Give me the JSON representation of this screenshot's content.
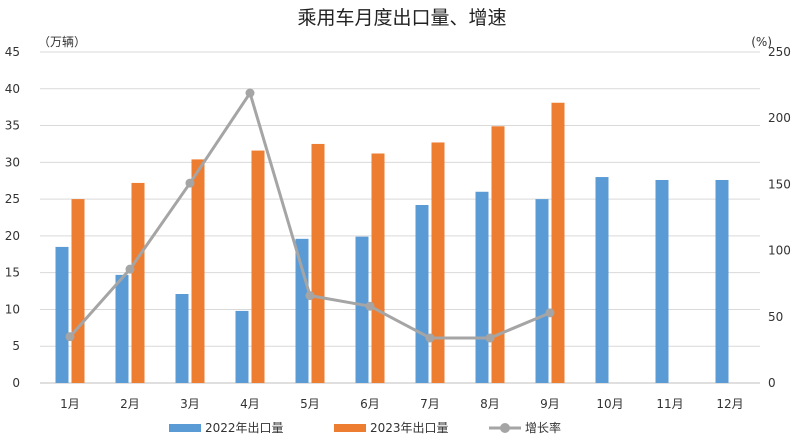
{
  "chart_data": {
    "type": "bar",
    "title": "乘用车月度出口量、增速",
    "left_unit": "（万辆）",
    "right_unit": "(%)",
    "categories": [
      "1月",
      "2月",
      "3月",
      "4月",
      "5月",
      "6月",
      "7月",
      "8月",
      "9月",
      "10月",
      "11月",
      "12月"
    ],
    "series": [
      {
        "name": "2022年出口量",
        "kind": "bar",
        "axis": "left",
        "color": "#5b9bd5",
        "values": [
          18.5,
          14.7,
          12.1,
          9.8,
          19.6,
          19.9,
          24.2,
          26.0,
          25.0,
          28.0,
          27.6,
          27.6
        ]
      },
      {
        "name": "2023年出口量",
        "kind": "bar",
        "axis": "left",
        "color": "#ed7d31",
        "values": [
          25.0,
          27.2,
          30.4,
          31.6,
          32.5,
          31.2,
          32.7,
          34.9,
          38.1,
          null,
          null,
          null
        ]
      },
      {
        "name": "增长率",
        "kind": "line",
        "axis": "right",
        "color": "#a5a5a5",
        "values": [
          35,
          86,
          151,
          219,
          66,
          58,
          34,
          34,
          53,
          null,
          null,
          null
        ]
      }
    ],
    "left_axis": {
      "min": 0,
      "max": 45,
      "step": 5
    },
    "right_axis": {
      "min": 0,
      "max": 250,
      "step": 50
    },
    "grid": true,
    "legend_position": "bottom"
  }
}
